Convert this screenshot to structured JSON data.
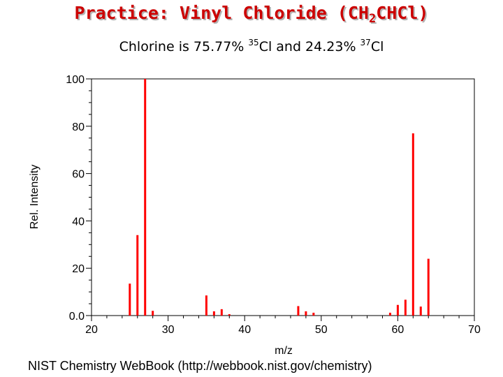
{
  "title": {
    "prefix": "Practice: Vinyl Chloride (CH",
    "sub": "2",
    "suffix": "CHCl)"
  },
  "subtitle": {
    "part1": "Chlorine is 75.77% ",
    "iso1": "35",
    "part2": "Cl and 24.23% ",
    "iso2": "37",
    "part3": "Cl"
  },
  "footer": "NIST Chemistry WebBook (http://webbook.nist.gov/chemistry)",
  "colors": {
    "title": "#cc0000",
    "peaks": "#ff0000",
    "axis": "#000000"
  },
  "chart_data": {
    "type": "bar",
    "xlabel": "m/z",
    "ylabel": "Rel. Intensity",
    "xlim": [
      20,
      70
    ],
    "ylim": [
      0,
      100
    ],
    "x_ticks": [
      "20",
      "30",
      "40",
      "50",
      "60",
      "70"
    ],
    "y_ticks": [
      "0.0",
      "20",
      "40",
      "60",
      "80",
      "100"
    ],
    "series": [
      {
        "x": [
          25,
          26,
          27,
          28,
          35,
          36,
          37,
          38,
          47,
          48,
          49,
          59,
          60,
          61,
          62,
          63,
          64
        ],
        "values": [
          13.5,
          34,
          100,
          2,
          8.5,
          1.8,
          2.7,
          0.6,
          4,
          1.8,
          1.2,
          1.2,
          4.5,
          6.7,
          77,
          3.8,
          24
        ]
      }
    ]
  }
}
